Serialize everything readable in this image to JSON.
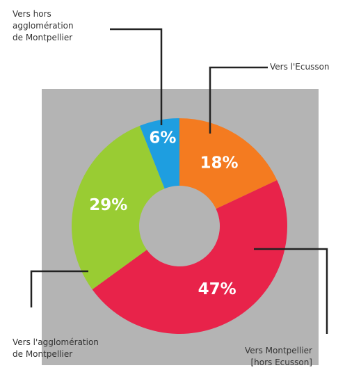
{
  "chart_data": {
    "type": "donut",
    "categories": [
      "Vers l'Ecusson",
      "Vers Montpellier\n[hors Ecusson]",
      "Vers l'agglomération\nde Montpellier",
      "Vers hors\nagglomération\nde Montpellier"
    ],
    "values": [
      18,
      47,
      29,
      6
    ],
    "value_labels": [
      "18%",
      "47%",
      "29%",
      "6%"
    ],
    "colors": [
      "#f47b20",
      "#e8234a",
      "#99cc33",
      "#1e9ee0"
    ]
  }
}
